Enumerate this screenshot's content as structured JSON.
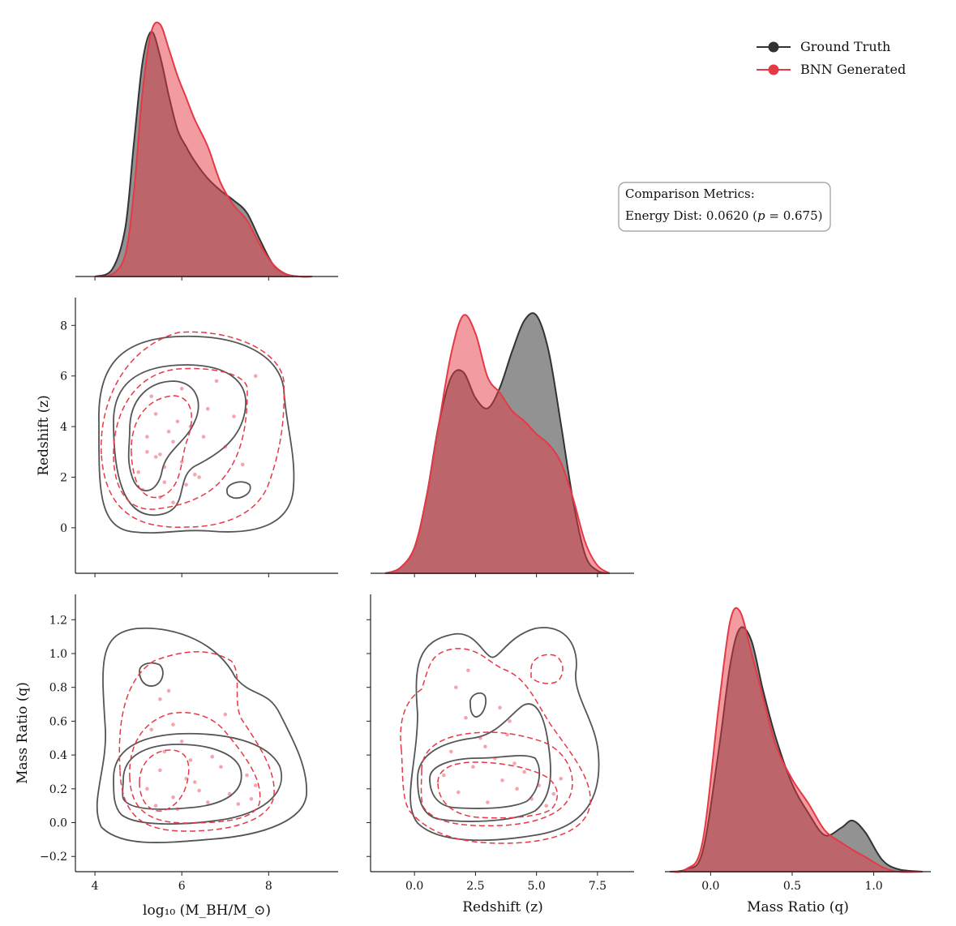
{
  "chart_data": {
    "type": "pairplot",
    "variables": [
      "log10 (M_BH/M_sun)",
      "Redshift (z)",
      "Mass Ratio (q)"
    ],
    "axes": {
      "mass": {
        "label": "log₁₀ (M_BH/M_⊙)",
        "range": [
          3.55,
          9.6
        ],
        "ticks": [
          4,
          6,
          8
        ],
        "tick_labels": [
          "4",
          "6",
          "8"
        ]
      },
      "redshift": {
        "label": "Redshift (z)",
        "range_x": [
          -1.8,
          9.0
        ],
        "ticks_x": [
          0.0,
          2.5,
          5.0,
          7.5
        ],
        "tick_labels_x": [
          "0.0",
          "2.5",
          "5.0",
          "7.5"
        ],
        "range_y": [
          -1.8,
          9.1
        ],
        "ticks_y": [
          0,
          2,
          4,
          6,
          8
        ],
        "tick_labels_y": [
          "0",
          "2",
          "4",
          "6",
          "8"
        ]
      },
      "q": {
        "label_y": "Mass Ratio (q)",
        "label_x": "Mass Ratio (q)",
        "range_y": [
          -0.29,
          1.35
        ],
        "ticks_y": [
          -0.2,
          0.0,
          0.2,
          0.4,
          0.6,
          0.8,
          1.0,
          1.2
        ],
        "tick_labels_y": [
          "−0.2",
          "0.0",
          "0.2",
          "0.4",
          "0.6",
          "0.8",
          "1.0",
          "1.2"
        ],
        "range_x": [
          -0.28,
          1.35
        ],
        "ticks_x": [
          0.0,
          0.5,
          1.0
        ],
        "tick_labels_x": [
          "0.0",
          "0.5",
          "1.0"
        ]
      }
    },
    "series": [
      {
        "name": "Ground Truth",
        "color": "#333333",
        "fill": "#4a4a4a"
      },
      {
        "name": "BNN Generated",
        "color": "#e63946",
        "fill": "#e63946"
      }
    ],
    "marginals": {
      "mass": {
        "x": [
          4.0,
          4.4,
          4.7,
          4.9,
          5.1,
          5.3,
          5.5,
          5.7,
          5.9,
          6.1,
          6.3,
          6.6,
          6.9,
          7.2,
          7.5,
          7.8,
          8.1,
          8.4,
          8.7,
          9.0
        ],
        "ground_truth": [
          0.0,
          0.03,
          0.2,
          0.55,
          0.88,
          1.0,
          0.9,
          0.74,
          0.6,
          0.53,
          0.47,
          0.4,
          0.35,
          0.31,
          0.26,
          0.15,
          0.05,
          0.01,
          0.0,
          0.0
        ],
        "bnn_generated": [
          0.0,
          0.01,
          0.09,
          0.35,
          0.76,
          1.0,
          1.03,
          0.93,
          0.82,
          0.73,
          0.64,
          0.53,
          0.38,
          0.29,
          0.23,
          0.13,
          0.05,
          0.01,
          0.0,
          0.0
        ]
      },
      "redshift": {
        "x": [
          -1.2,
          -0.6,
          0.0,
          0.5,
          1.0,
          1.5,
          2.0,
          2.5,
          3.0,
          3.5,
          4.0,
          4.5,
          5.0,
          5.5,
          6.0,
          6.5,
          7.0,
          7.5,
          8.0
        ],
        "ground_truth": [
          0.0,
          0.02,
          0.1,
          0.3,
          0.58,
          0.76,
          0.78,
          0.68,
          0.64,
          0.72,
          0.86,
          0.98,
          1.0,
          0.86,
          0.58,
          0.28,
          0.07,
          0.01,
          0.0
        ],
        "bnn_generated": [
          0.0,
          0.02,
          0.1,
          0.3,
          0.58,
          0.85,
          1.0,
          0.93,
          0.76,
          0.7,
          0.63,
          0.59,
          0.54,
          0.5,
          0.43,
          0.29,
          0.12,
          0.03,
          0.0
        ]
      },
      "q": {
        "x": [
          -0.25,
          -0.15,
          -0.05,
          0.05,
          0.12,
          0.18,
          0.25,
          0.32,
          0.4,
          0.5,
          0.6,
          0.7,
          0.8,
          0.87,
          0.95,
          1.05,
          1.15,
          1.3
        ],
        "ground_truth": [
          0.0,
          0.01,
          0.08,
          0.5,
          0.85,
          1.0,
          0.95,
          0.75,
          0.55,
          0.36,
          0.24,
          0.15,
          0.18,
          0.21,
          0.16,
          0.05,
          0.01,
          0.0
        ],
        "bnn_generated": [
          0.0,
          0.01,
          0.12,
          0.68,
          1.03,
          1.07,
          0.9,
          0.72,
          0.52,
          0.38,
          0.28,
          0.17,
          0.12,
          0.09,
          0.06,
          0.02,
          0.0,
          0.0
        ]
      }
    },
    "scatter_mass_z": {
      "x": [
        5.0,
        5.2,
        5.4,
        5.6,
        5.8,
        6.0,
        6.2,
        5.3,
        5.5,
        5.7,
        6.0,
        6.3,
        6.6,
        7.0,
        7.4,
        7.7,
        5.1,
        5.4,
        5.9,
        6.1,
        6.5,
        6.8,
        5.6,
        5.2,
        5.8,
        6.4,
        7.2,
        5.5
      ],
      "y": [
        2.2,
        3.0,
        4.5,
        1.8,
        3.4,
        2.6,
        4.0,
        5.2,
        1.2,
        3.8,
        5.5,
        2.1,
        4.7,
        3.2,
        2.5,
        6.0,
        1.5,
        2.8,
        4.2,
        1.7,
        3.6,
        5.8,
        2.4,
        3.6,
        1.0,
        2.0,
        4.4,
        2.9
      ]
    },
    "scatter_mass_q": {
      "x": [
        5.2,
        5.5,
        5.8,
        6.1,
        5.6,
        5.9,
        6.4,
        6.9,
        7.3,
        7.7,
        5.3,
        5.7,
        6.2,
        6.6,
        7.0,
        7.5,
        5.4,
        6.0,
        6.3,
        5.8,
        5.5,
        6.7,
        7.1,
        7.6
      ],
      "y": [
        0.2,
        0.31,
        0.15,
        0.26,
        0.42,
        0.08,
        0.19,
        0.33,
        0.11,
        0.22,
        0.55,
        0.78,
        0.37,
        0.12,
        0.64,
        0.28,
        0.1,
        0.48,
        0.24,
        0.58,
        0.73,
        0.39,
        0.17,
        0.14
      ]
    },
    "scatter_z_q": {
      "x": [
        1.2,
        1.8,
        2.4,
        3.0,
        3.6,
        4.2,
        4.8,
        5.4,
        1.5,
        2.1,
        2.7,
        3.3,
        3.9,
        4.5,
        5.1,
        5.7,
        1.7,
        2.9,
        3.5,
        4.1,
        6.0,
        2.2,
        3.8
      ],
      "y": [
        0.28,
        0.18,
        0.33,
        0.12,
        0.25,
        0.2,
        0.14,
        0.1,
        0.42,
        0.62,
        0.5,
        0.38,
        0.6,
        0.3,
        0.22,
        0.17,
        0.8,
        0.45,
        0.68,
        0.35,
        0.26,
        0.9,
        0.52
      ]
    },
    "legend": {
      "entries": [
        "Ground Truth",
        "BNN Generated"
      ],
      "position": "top-right"
    },
    "metrics_box": {
      "line1": "Comparison Metrics:",
      "line2_prefix": "Energy Dist: 0.0620 (",
      "line2_var": "p",
      "line2_suffix": " = 0.675)"
    }
  }
}
